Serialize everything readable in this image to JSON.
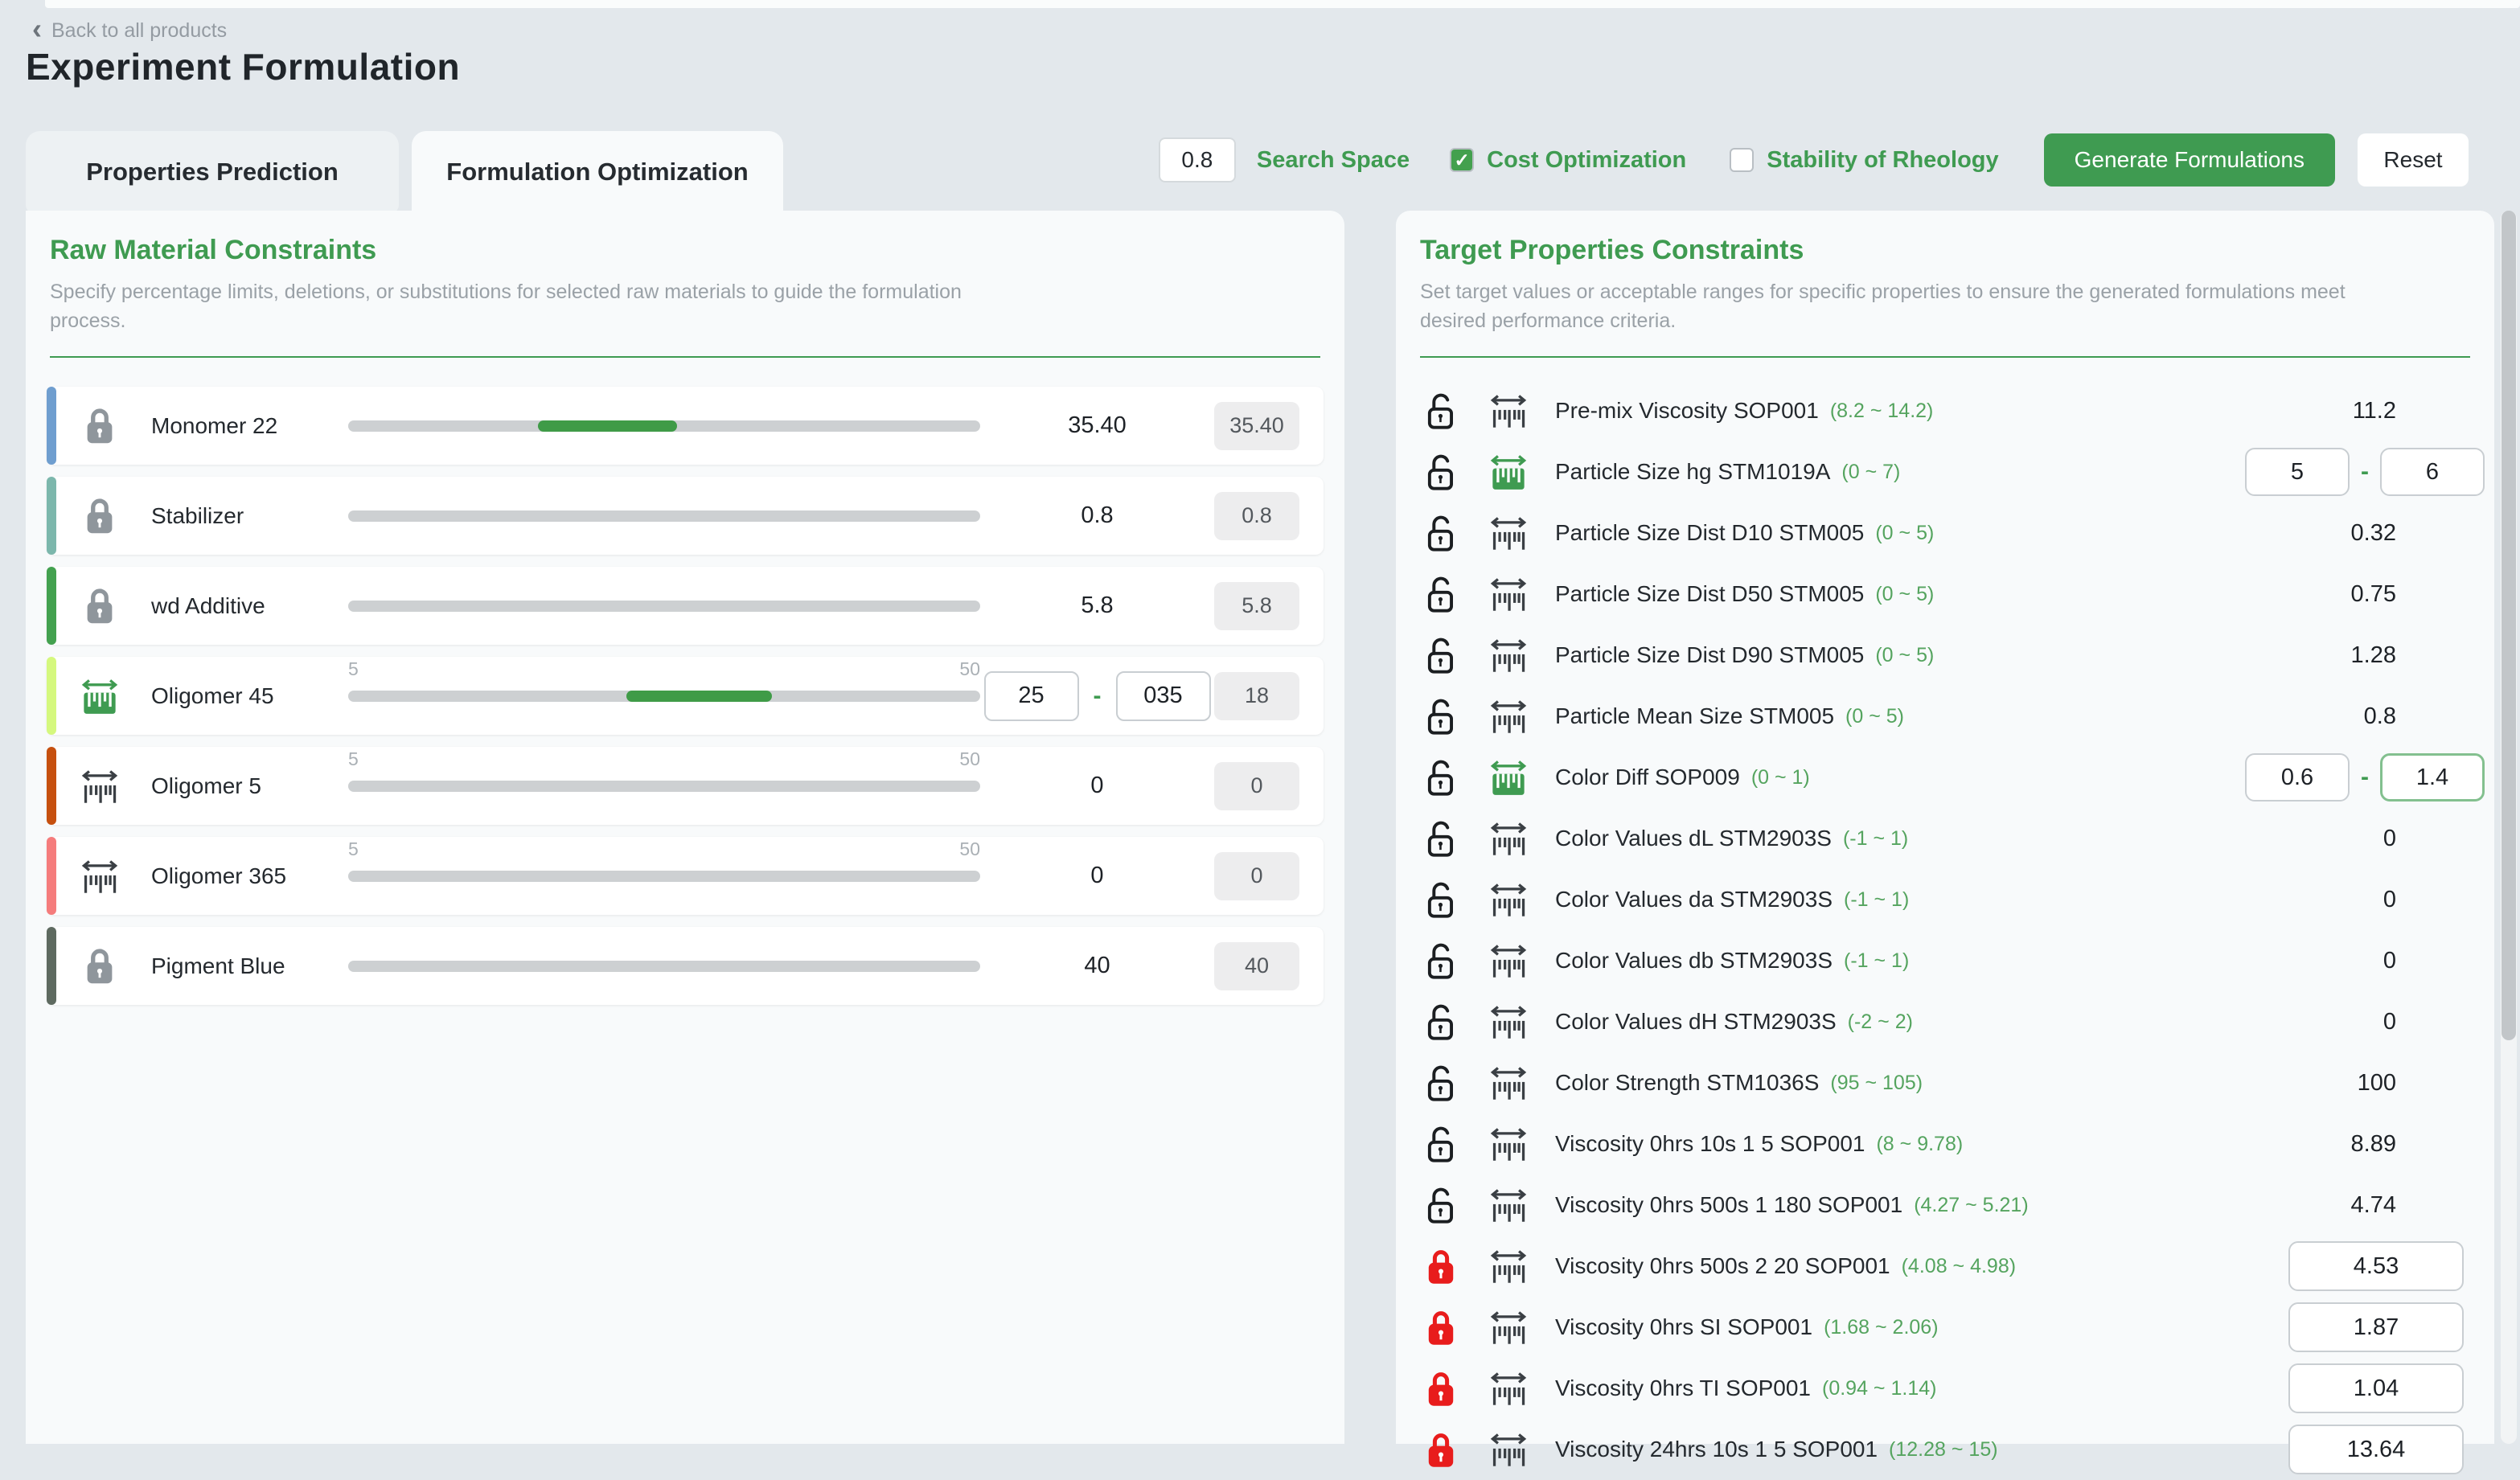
{
  "header": {
    "back_label": "Back to all products",
    "title": "Experiment Formulation"
  },
  "icons": {
    "back_chevron": "‹",
    "checkmark": "✓"
  },
  "ui": {
    "range_separator": "-"
  },
  "tabs": [
    {
      "label": "Properties Prediction",
      "active": false
    },
    {
      "label": "Formulation Optimization",
      "active": true
    }
  ],
  "toolbar": {
    "search_space_value": "0.8",
    "search_space_label": "Search Space",
    "cost_optimization_label": "Cost Optimization",
    "cost_optimization_checked": true,
    "stability_label": "Stability of Rheology",
    "stability_checked": false,
    "generate_label": "Generate Formulations",
    "reset_label": "Reset"
  },
  "colors": {
    "primary_green": "#3f9b51",
    "slider_fill_green": "#3f9b47",
    "range_text_green": "#55a45f",
    "locked_red": "#e81c1c",
    "page_background": "#e3e8ec",
    "panel_background": "#f8fafb"
  },
  "raw_materials": {
    "title": "Raw Material Constraints",
    "subtitle": "Specify percentage limits, deletions, or substitutions for selected raw materials to guide the formulation process.",
    "items": [
      {
        "name": "Monomer 22",
        "icon": "lock",
        "accent_color": "#6f9ecf",
        "fill_start": 30,
        "fill_end": 52,
        "display": "value",
        "value": "35.40",
        "readout": "35.40"
      },
      {
        "name": "Stabilizer",
        "icon": "lock",
        "accent_color": "#7cb7ac",
        "display": "value",
        "value": "0.8",
        "readout": "0.8"
      },
      {
        "name": "wd Additive",
        "icon": "lock",
        "accent_color": "#43a14f",
        "display": "value",
        "value": "5.8",
        "readout": "5.8"
      },
      {
        "name": "Oligomer 45",
        "icon": "ruler-green",
        "accent_color": "#d5f87e",
        "min_label": "5",
        "max_label": "50",
        "fill_start": 44,
        "fill_end": 67,
        "display": "range",
        "range_min": "25",
        "range_max": "035",
        "readout": "18"
      },
      {
        "name": "Oligomer 5",
        "icon": "ruler-gray",
        "accent_color": "#c6500f",
        "min_label": "5",
        "max_label": "50",
        "display": "value",
        "value": "0",
        "readout": "0"
      },
      {
        "name": "Oligomer 365",
        "icon": "ruler-gray",
        "accent_color": "#f57c7c",
        "min_label": "5",
        "max_label": "50",
        "display": "value",
        "value": "0",
        "readout": "0"
      },
      {
        "name": "Pigment Blue",
        "icon": "lock",
        "accent_color": "#5e6a60",
        "display": "value",
        "value": "40",
        "readout": "40"
      }
    ]
  },
  "target_properties": {
    "title": "Target Properties Constraints",
    "subtitle": "Set target values or acceptable ranges for specific properties to ensure the generated formulations meet desired performance criteria.",
    "rows": [
      {
        "name": "Pre-mix Viscosity SOP001",
        "range": "(8.2 ~ 14.2)",
        "lock": "open",
        "ruler": "gray",
        "display": "text",
        "value": "11.2"
      },
      {
        "name": "Particle Size hg STM1019A",
        "range": "(0 ~ 7)",
        "lock": "open",
        "ruler": "green",
        "display": "range",
        "min": "5",
        "max": "6"
      },
      {
        "name": "Particle Size Dist D10 STM005",
        "range": "(0 ~ 5)",
        "lock": "open",
        "ruler": "gray",
        "display": "text",
        "value": "0.32"
      },
      {
        "name": "Particle Size Dist D50 STM005",
        "range": "(0 ~ 5)",
        "lock": "open",
        "ruler": "gray",
        "display": "text",
        "value": "0.75"
      },
      {
        "name": "Particle Size Dist D90 STM005",
        "range": "(0 ~ 5)",
        "lock": "open",
        "ruler": "gray",
        "display": "text",
        "value": "1.28"
      },
      {
        "name": "Particle Mean Size STM005",
        "range": "(0 ~ 5)",
        "lock": "open",
        "ruler": "gray",
        "display": "text",
        "value": "0.8"
      },
      {
        "name": "Color Diff SOP009",
        "range": "(0 ~ 1)",
        "lock": "open",
        "ruler": "green",
        "display": "range",
        "min": "0.6",
        "max": "1.4",
        "max_highlighted": true
      },
      {
        "name": "Color Values dL STM2903S",
        "range": "(-1 ~ 1)",
        "lock": "open",
        "ruler": "gray",
        "display": "text",
        "value": "0"
      },
      {
        "name": "Color Values da STM2903S",
        "range": "(-1 ~ 1)",
        "lock": "open",
        "ruler": "gray",
        "display": "text",
        "value": "0"
      },
      {
        "name": "Color Values db STM2903S",
        "range": "(-1 ~ 1)",
        "lock": "open",
        "ruler": "gray",
        "display": "text",
        "value": "0"
      },
      {
        "name": "Color Values dH STM2903S",
        "range": "(-2 ~ 2)",
        "lock": "open",
        "ruler": "gray",
        "display": "text",
        "value": "0"
      },
      {
        "name": "Color Strength STM1036S",
        "range": "(95 ~ 105)",
        "lock": "open",
        "ruler": "gray",
        "display": "text",
        "value": "100"
      },
      {
        "name": "Viscosity 0hrs 10s 1 5 SOP001",
        "range": "(8 ~ 9.78)",
        "lock": "open",
        "ruler": "gray",
        "display": "text",
        "value": "8.89"
      },
      {
        "name": "Viscosity 0hrs 500s 1 180 SOP001",
        "range": "(4.27 ~ 5.21)",
        "lock": "open",
        "ruler": "gray",
        "display": "text",
        "value": "4.74"
      },
      {
        "name": "Viscosity 0hrs 500s 2 20 SOP001",
        "range": "(4.08 ~ 4.98)",
        "lock": "locked",
        "ruler": "gray",
        "display": "input",
        "value": "4.53"
      },
      {
        "name": "Viscosity 0hrs SI SOP001",
        "range": "(1.68 ~ 2.06)",
        "lock": "locked",
        "ruler": "gray",
        "display": "input",
        "value": "1.87"
      },
      {
        "name": "Viscosity 0hrs TI SOP001",
        "range": "(0.94 ~ 1.14)",
        "lock": "locked",
        "ruler": "gray",
        "display": "input",
        "value": "1.04"
      },
      {
        "name": "Viscosity 24hrs 10s 1 5 SOP001",
        "range": "(12.28 ~ 15)",
        "lock": "locked",
        "ruler": "gray",
        "display": "input",
        "value": "13.64"
      }
    ]
  }
}
